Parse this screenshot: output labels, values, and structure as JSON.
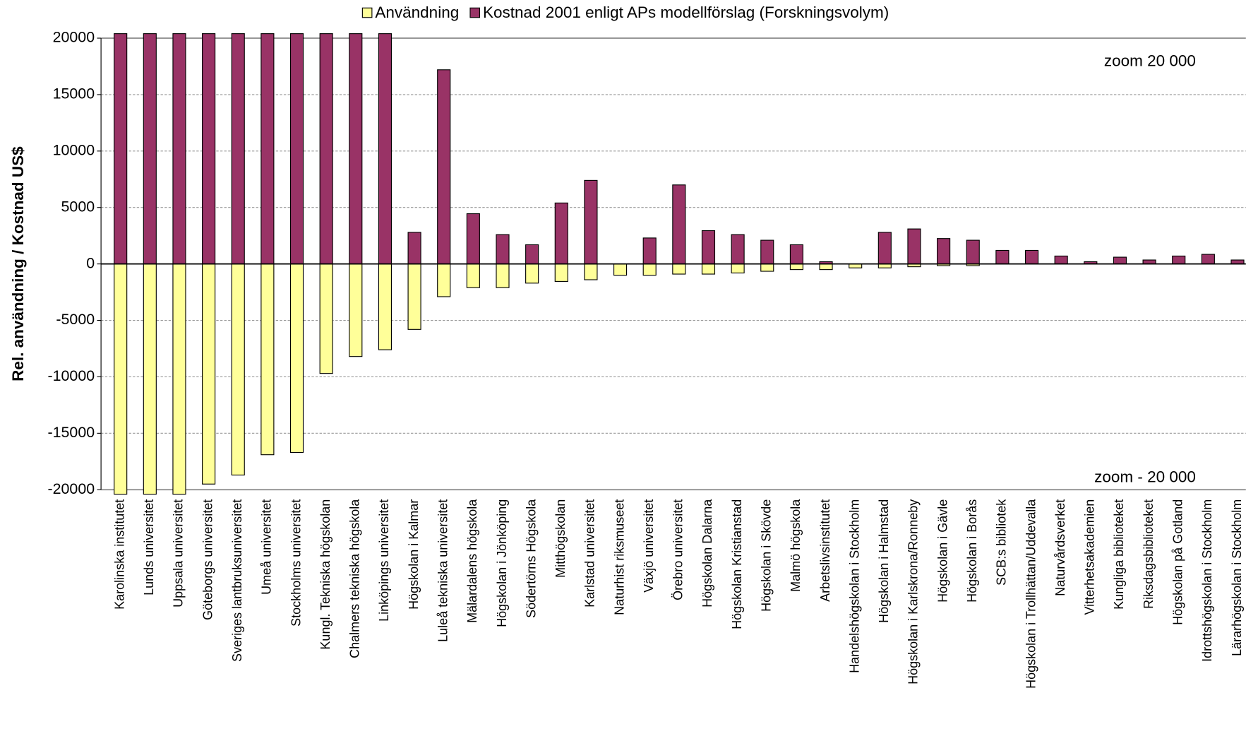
{
  "chart_data": {
    "type": "bar",
    "ylabel": "Rel. användning / Kostnad US$",
    "annotations": [
      "zoom 20 000",
      "zoom - 20 000"
    ],
    "categories": [
      "Karolinska institutet",
      "Lunds universitet",
      "Uppsala universitet",
      "Göteborgs universitet",
      "Sveriges lantbruksuniversitet",
      "Umeå universitet",
      "Stockholms universitet",
      "Kungl. Tekniska högskolan",
      "Chalmers tekniska högskola",
      "Linköpings universitet",
      "Högskolan i Kalmar",
      "Luleå tekniska universitet",
      "Mälardalens högskola",
      "Högskolan i Jönköping",
      "Södertörns Högskola",
      "Mitthögskolan",
      "Karlstad universitet",
      "Naturhist riksmuseet",
      "Växjö universitet",
      "Örebro universitet",
      "Högskolan Dalarna",
      "Högskolan Kristianstad",
      "Högskolan i Skövde",
      "Malmö högskola",
      "Arbetslivsinstitutet",
      "Handelshögskolan i Stockholm",
      "Högskolan i Halmstad",
      "Högskolan i Karlskrona/Ronneby",
      "Högskolan i Gävle",
      "Högskolan i Borås",
      "SCB:s bibliotek",
      "Högskolan i Trollhättan/Uddevalla",
      "Naturvårdsverket",
      "Vitterhetsakademien",
      "Kungliga biblioteket",
      "Riksdagsbiblioteket",
      "Högskolan på Gotland",
      "Idrottshögskolan i Stockholm",
      "Lärarhögskolan i Stockholm"
    ],
    "series": [
      {
        "name": "Användning",
        "color": "#ffff99",
        "values": [
          -20400,
          -20400,
          -20400,
          -19500,
          -18700,
          -16900,
          -16700,
          -9700,
          -8200,
          -7600,
          -5800,
          -2900,
          -2100,
          -2100,
          -1700,
          -1550,
          -1400,
          -1000,
          -1000,
          -900,
          -900,
          -800,
          -650,
          -500,
          -500,
          -350,
          -350,
          -250,
          -150,
          -150,
          0,
          0,
          0,
          0,
          0,
          0,
          0,
          0,
          0
        ]
      },
      {
        "name": "Kostnad 2001 enligt APs modellförslag (Forskningsvolym)",
        "color": "#993366",
        "values": [
          20400,
          20400,
          20400,
          20400,
          20400,
          20400,
          20400,
          20400,
          20400,
          20400,
          2800,
          17200,
          4450,
          2600,
          1700,
          5400,
          7400,
          0,
          2300,
          7000,
          2950,
          2600,
          2100,
          1700,
          200,
          0,
          2800,
          3100,
          2250,
          2100,
          1200,
          1200,
          700,
          200,
          600,
          350,
          700,
          850,
          350
        ]
      }
    ],
    "ylim": [
      -20000,
      20000
    ],
    "yticks": [
      -20000,
      -15000,
      -10000,
      -5000,
      0,
      5000,
      10000,
      15000,
      20000
    ],
    "grid": true
  }
}
